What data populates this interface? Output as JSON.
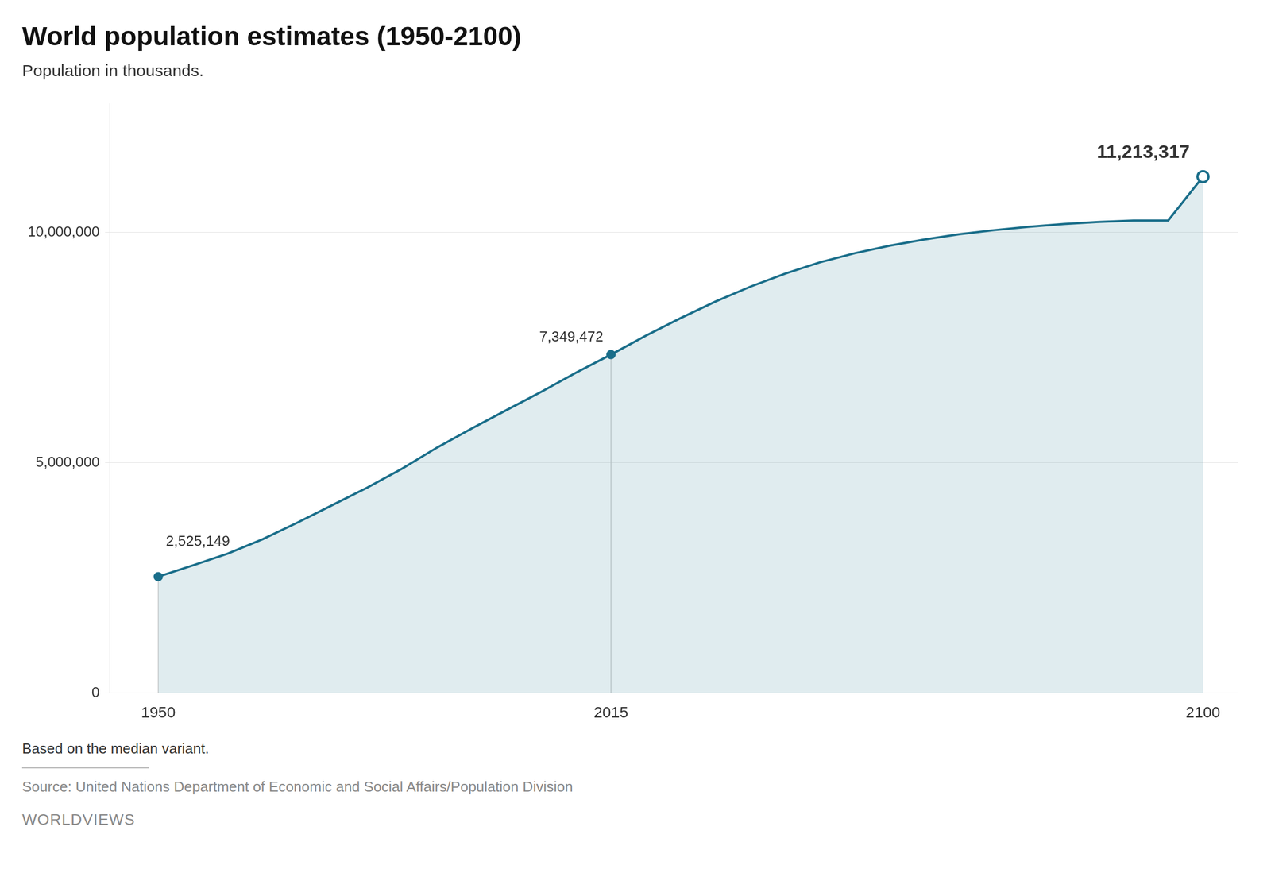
{
  "chart_data": {
    "type": "line",
    "title": "World population estimates (1950-2100)",
    "subtitle": "Population in thousands.",
    "footnote": "Based on the median variant.",
    "source": "Source: United Nations Department of Economic and Social Affairs/Population Division",
    "brand": "WORLDVIEWS",
    "color": "#1a6e8a",
    "x": [
      1950,
      1955,
      1960,
      1965,
      1970,
      1975,
      1980,
      1985,
      1990,
      1995,
      2000,
      2005,
      2010,
      2015,
      2020,
      2025,
      2030,
      2035,
      2040,
      2045,
      2050,
      2055,
      2060,
      2065,
      2070,
      2075,
      2080,
      2085,
      2090,
      2095,
      2100
    ],
    "values": [
      2525149,
      2772242,
      3026003,
      3339592,
      3700437,
      4079480,
      4458411,
      4870922,
      5327231,
      5744212,
      6143494,
      6541907,
      6956824,
      7349472,
      7758157,
      8141661,
      8500766,
      8823849,
      9107384,
      9352908,
      9551177,
      9713673,
      9848945,
      9963072,
      10052181,
      10125105,
      10184198,
      10229800,
      10261903,
      10259925,
      11213317
    ],
    "annotations": [
      {
        "x": 1950,
        "y": 2525149,
        "text": "2,525,149"
      },
      {
        "x": 2015,
        "y": 7349472,
        "text": "7,349,472"
      },
      {
        "x": 2100,
        "y": 11213317,
        "text": "11,213,317"
      }
    ],
    "xlim": [
      1943,
      2105
    ],
    "xticks": [
      1950,
      2015,
      2100
    ],
    "ylim": [
      0,
      12800000
    ],
    "yticks": [
      0,
      {
        "value": 5000000,
        "label": "5,000,000"
      },
      {
        "value": 10000000,
        "label": "10,000,000"
      }
    ],
    "grid": "y"
  }
}
